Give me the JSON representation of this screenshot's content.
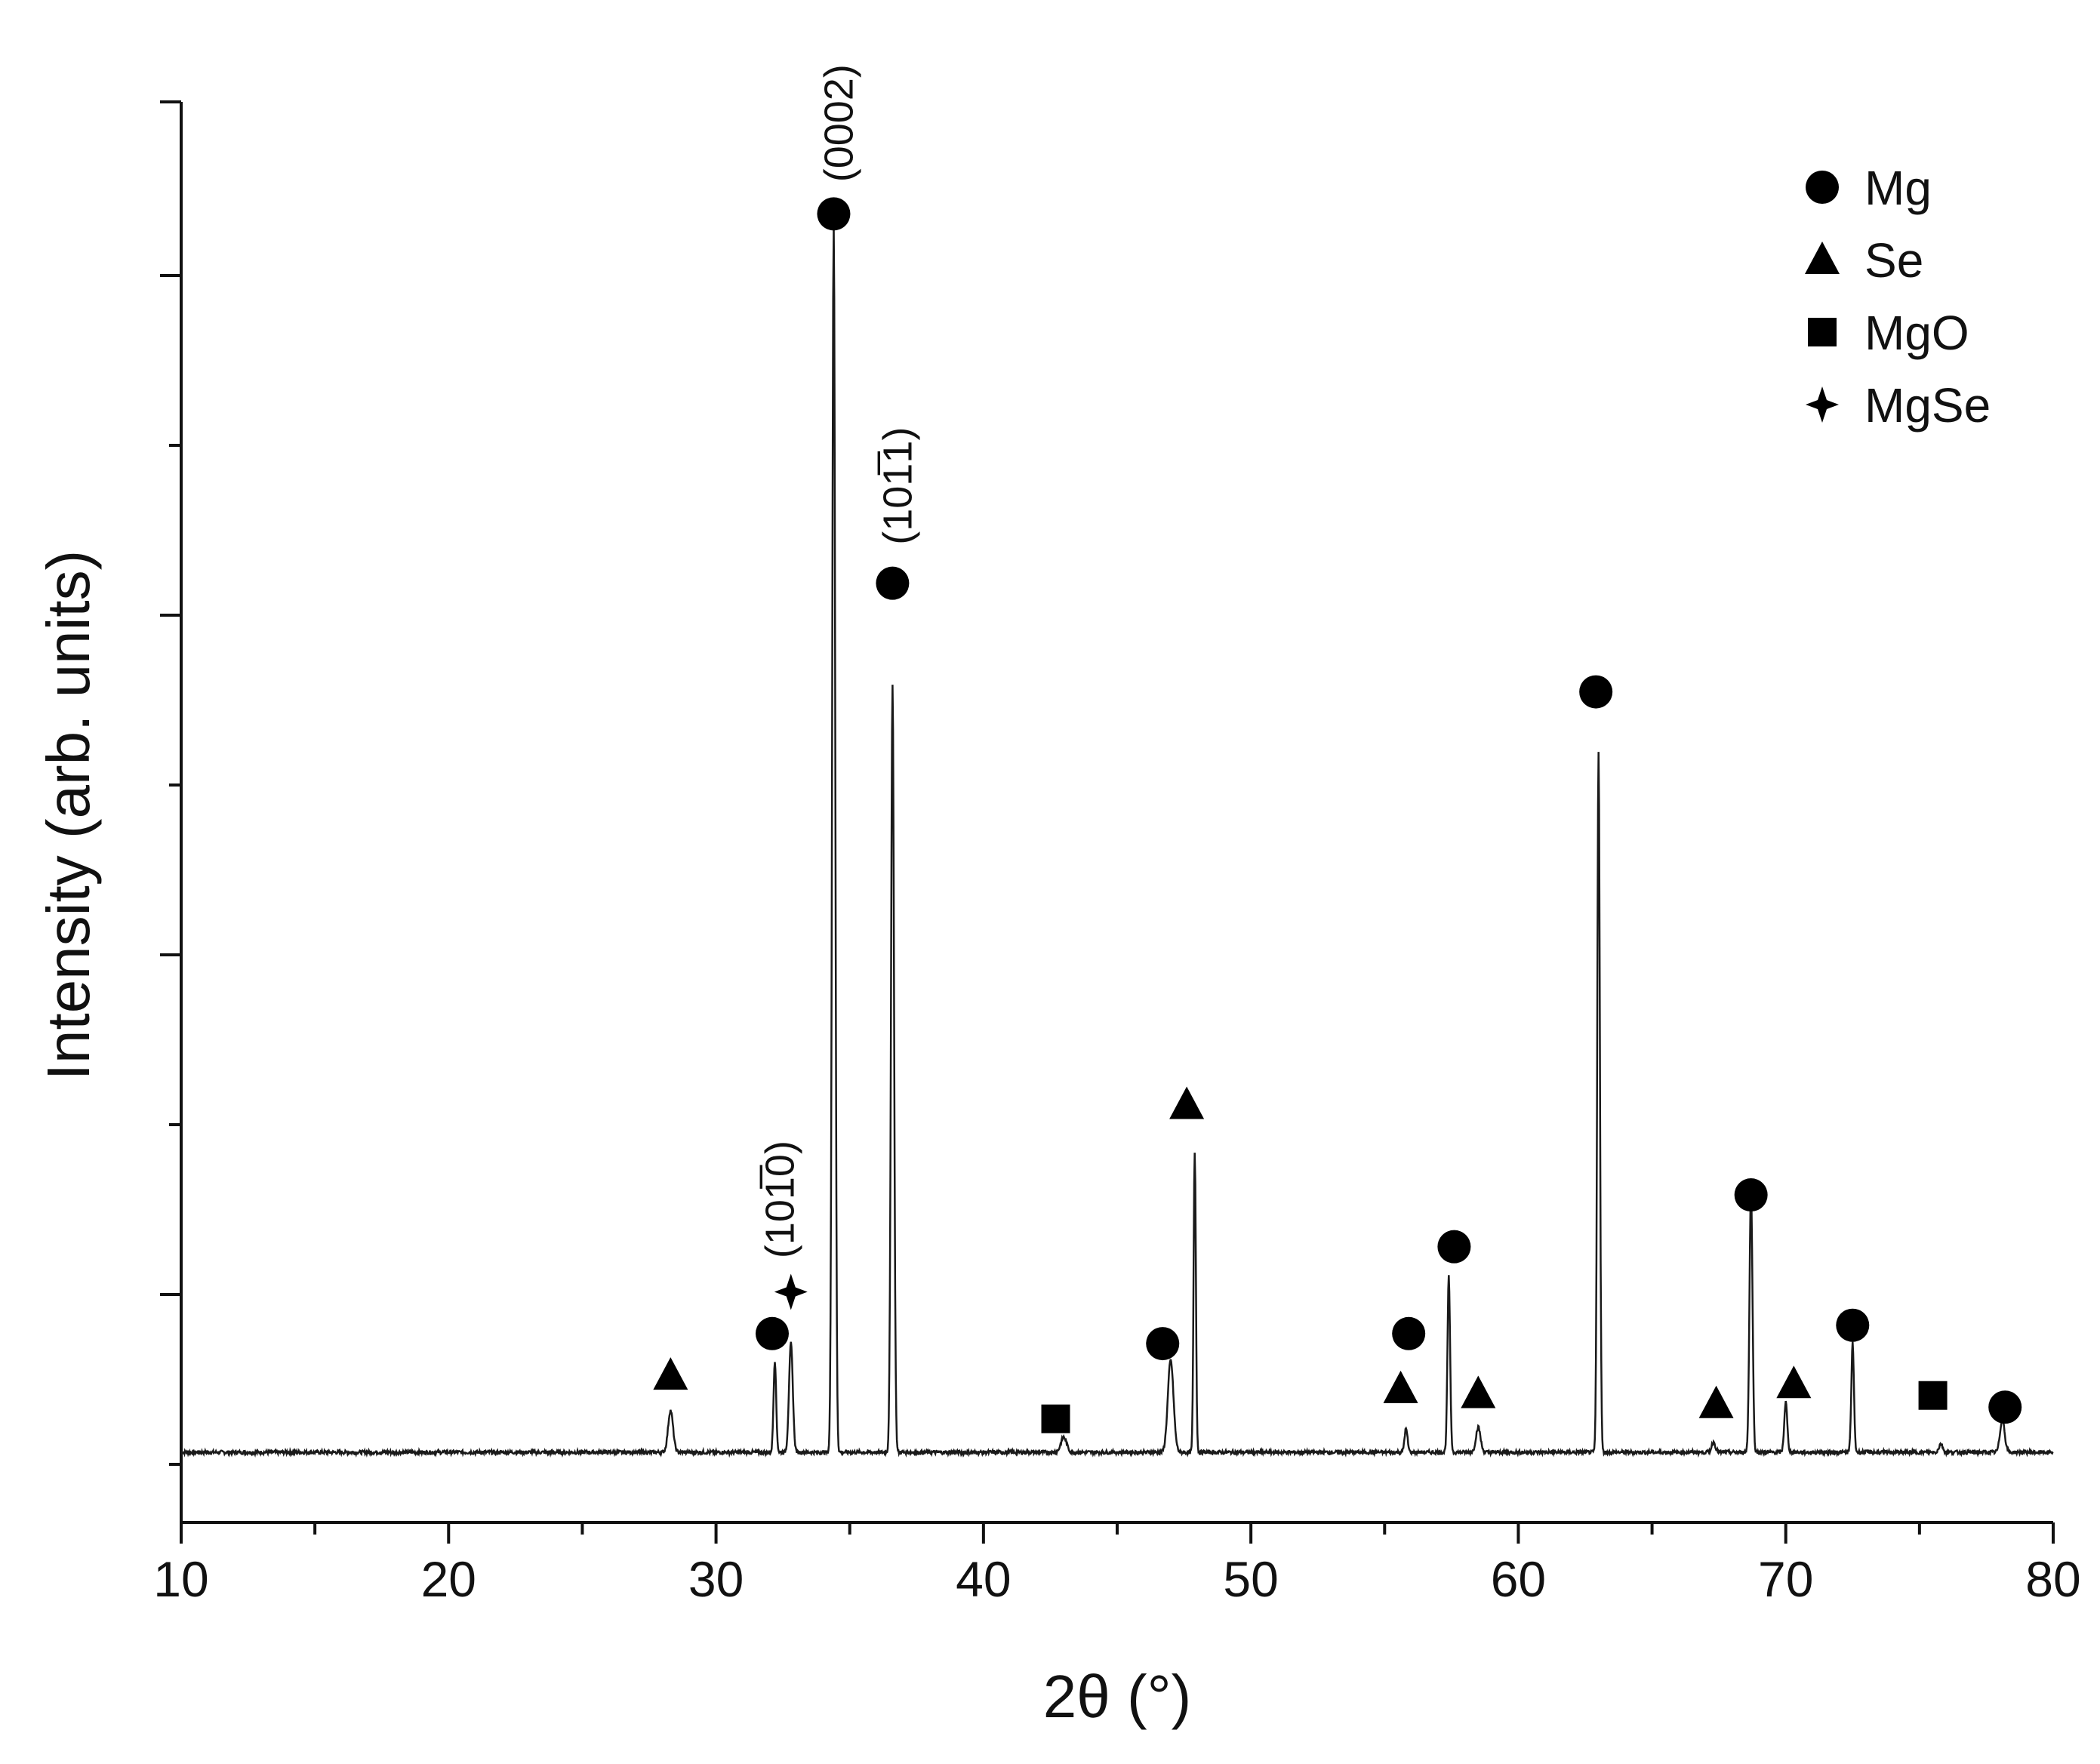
{
  "chart_data": {
    "type": "line",
    "xlabel": "2θ (°)",
    "ylabel": "Intensity (arb. units)",
    "xlim": [
      10,
      80
    ],
    "ylim": [
      -0.4,
      8.1
    ],
    "x_ticks": [
      10,
      20,
      30,
      40,
      50,
      60,
      70,
      80
    ],
    "x_tick_labels": [
      "10",
      "20",
      "30",
      "40",
      "50",
      "60",
      "70",
      "80"
    ],
    "y_tick_labels_shown": false,
    "grid": false,
    "legend_position": "top-right",
    "line_color": "#1a1a1a",
    "marker_color": "#000000",
    "baseline": 0.02,
    "peaks": [
      {
        "x": 28.3,
        "y": 0.25,
        "w": 0.13
      },
      {
        "x": 32.2,
        "y": 0.55,
        "w": 0.07
      },
      {
        "x": 32.8,
        "y": 0.65,
        "w": 0.1
      },
      {
        "x": 34.4,
        "y": 7.35,
        "w": 0.08
      },
      {
        "x": 36.6,
        "y": 4.6,
        "w": 0.08
      },
      {
        "x": 43.0,
        "y": 0.09,
        "w": 0.15
      },
      {
        "x": 47.0,
        "y": 0.55,
        "w": 0.15
      },
      {
        "x": 47.9,
        "y": 1.8,
        "w": 0.06
      },
      {
        "x": 55.8,
        "y": 0.14,
        "w": 0.08
      },
      {
        "x": 57.4,
        "y": 1.05,
        "w": 0.07
      },
      {
        "x": 58.5,
        "y": 0.15,
        "w": 0.12
      },
      {
        "x": 63.0,
        "y": 4.2,
        "w": 0.07
      },
      {
        "x": 67.3,
        "y": 0.06,
        "w": 0.1
      },
      {
        "x": 68.7,
        "y": 1.55,
        "w": 0.08
      },
      {
        "x": 70.0,
        "y": 0.3,
        "w": 0.08
      },
      {
        "x": 72.5,
        "y": 0.65,
        "w": 0.07
      },
      {
        "x": 75.8,
        "y": 0.05,
        "w": 0.1
      },
      {
        "x": 78.1,
        "y": 0.2,
        "w": 0.12
      }
    ],
    "phase_markers": [
      {
        "phase": "Se",
        "x": 28.3,
        "y": 0.48
      },
      {
        "phase": "Mg",
        "x": 32.1,
        "y": 0.73
      },
      {
        "phase": "MgSe",
        "x": 32.8,
        "y": 0.98
      },
      {
        "phase": "Mg",
        "x": 34.4,
        "y": 7.43
      },
      {
        "phase": "Mg",
        "x": 36.6,
        "y": 5.22
      },
      {
        "phase": "MgO",
        "x": 42.7,
        "y": 0.22
      },
      {
        "phase": "Mg",
        "x": 46.7,
        "y": 0.67
      },
      {
        "phase": "Se",
        "x": 47.6,
        "y": 2.1
      },
      {
        "phase": "Mg",
        "x": 55.9,
        "y": 0.73
      },
      {
        "phase": "Se",
        "x": 55.6,
        "y": 0.4
      },
      {
        "phase": "Mg",
        "x": 57.6,
        "y": 1.25
      },
      {
        "phase": "Se",
        "x": 58.5,
        "y": 0.37
      },
      {
        "phase": "Mg",
        "x": 62.9,
        "y": 4.57
      },
      {
        "phase": "Se",
        "x": 67.4,
        "y": 0.31
      },
      {
        "phase": "Se",
        "x": 70.3,
        "y": 0.43
      },
      {
        "phase": "Mg",
        "x": 68.7,
        "y": 1.56
      },
      {
        "phase": "Mg",
        "x": 72.5,
        "y": 0.78
      },
      {
        "phase": "MgO",
        "x": 75.5,
        "y": 0.36
      },
      {
        "phase": "Mg",
        "x": 78.2,
        "y": 0.29
      }
    ],
    "annotations": [
      {
        "id": "peak-label-0002",
        "text": "(0002)",
        "x": 34.6,
        "y": 7.62
      },
      {
        "id": "peak-label-10-11",
        "text": "(101̅1)",
        "x": 36.8,
        "y": 5.45
      },
      {
        "id": "peak-label-10-10",
        "text": "(101̅0)",
        "x": 32.4,
        "y": 1.18
      }
    ],
    "legend": [
      {
        "label": "Mg",
        "symbol": "circle"
      },
      {
        "label": "Se",
        "symbol": "triangle"
      },
      {
        "label": "MgO",
        "symbol": "square"
      },
      {
        "label": "MgSe",
        "symbol": "star"
      }
    ]
  }
}
